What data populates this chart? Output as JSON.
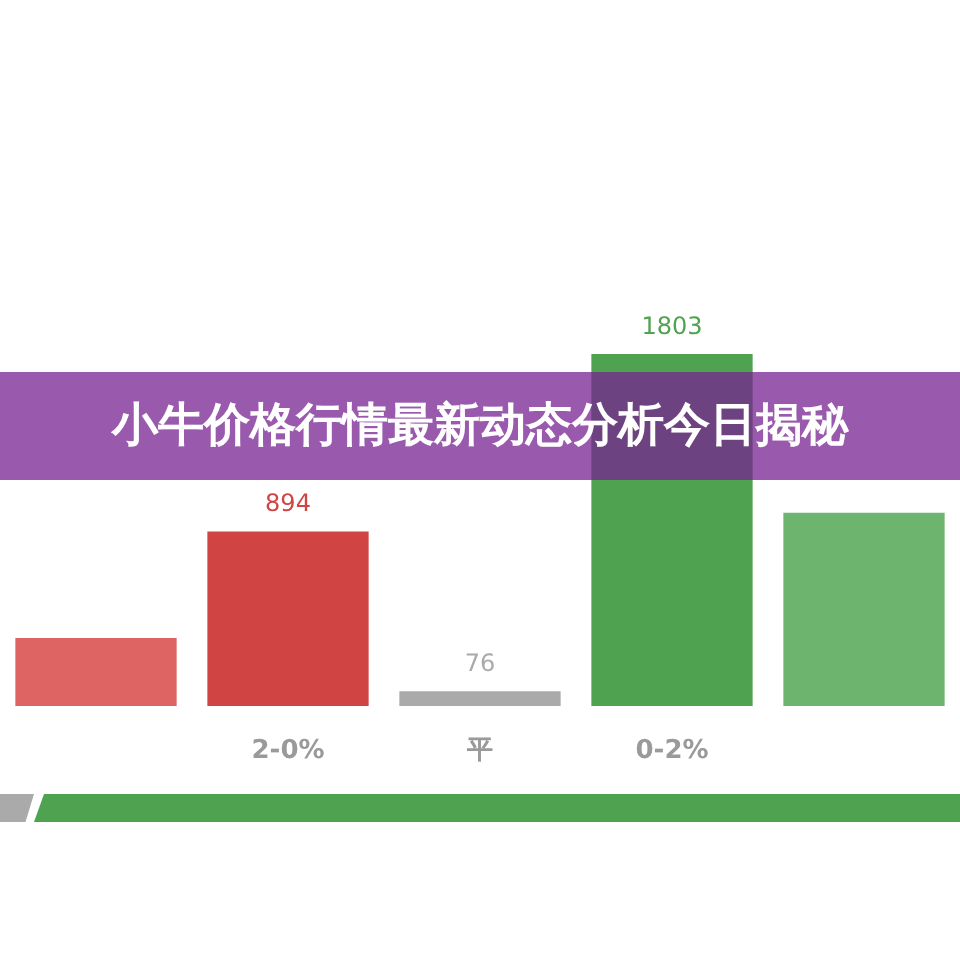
{
  "chart_data": {
    "type": "bar",
    "title": "小牛价格行情最新动态分析今日揭秘",
    "categories": [
      null,
      "2-0%",
      "平",
      "0-2%",
      null
    ],
    "values": [
      348,
      894,
      76,
      1803,
      990
    ],
    "colors": [
      "#de6363",
      "#d04443",
      "#aaaaaa",
      "#4fa24f",
      "#6db56f"
    ],
    "value_labels": [
      null,
      "894",
      "76",
      "1803",
      null
    ]
  }
}
